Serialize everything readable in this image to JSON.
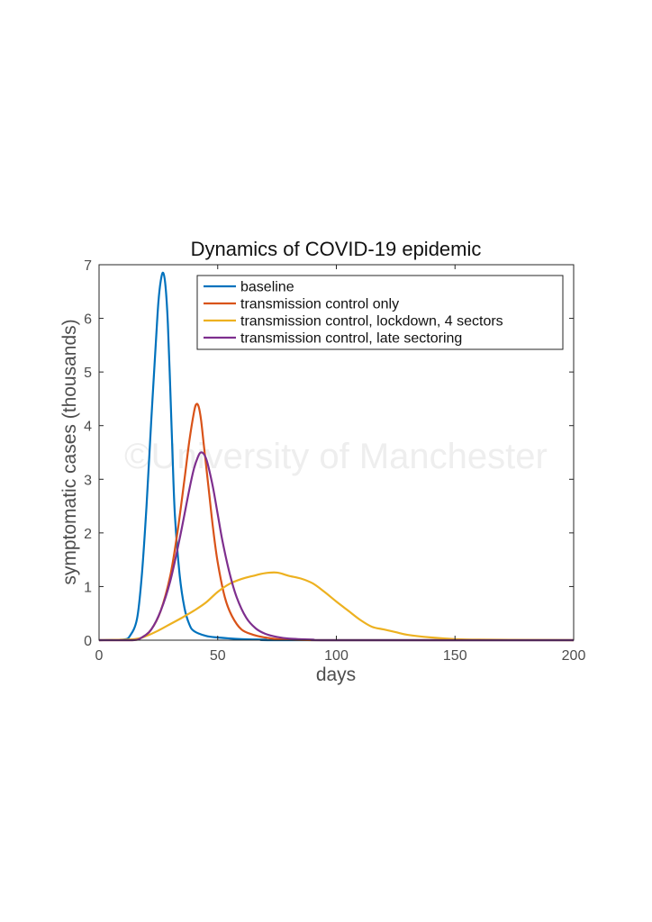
{
  "watermark": "©University of Manchester",
  "chart_data": {
    "type": "line",
    "title": "Dynamics of COVID-19 epidemic",
    "xlabel": "days",
    "ylabel": "symptomatic cases (thousands)",
    "xlim": [
      0,
      200
    ],
    "ylim": [
      0,
      7
    ],
    "xticks": [
      0,
      50,
      100,
      150,
      200
    ],
    "yticks": [
      0,
      1,
      2,
      3,
      4,
      5,
      6,
      7
    ],
    "grid": false,
    "legend_position": "top-right",
    "series": [
      {
        "name": "baseline",
        "color": "#0072bd",
        "x": [
          0,
          10,
          13,
          16,
          18,
          20,
          22,
          24,
          25,
          26,
          27,
          28,
          29,
          30,
          31,
          32,
          34,
          36,
          38,
          40,
          45,
          50,
          60,
          70,
          80,
          200
        ],
        "y": [
          0,
          0.01,
          0.08,
          0.4,
          1.2,
          2.5,
          4.1,
          5.6,
          6.3,
          6.7,
          6.85,
          6.6,
          5.9,
          4.7,
          3.4,
          2.3,
          1.2,
          0.6,
          0.3,
          0.17,
          0.08,
          0.05,
          0.02,
          0.01,
          0,
          0
        ]
      },
      {
        "name": "transmission control only",
        "color": "#d95319",
        "x": [
          0,
          14,
          18,
          22,
          26,
          30,
          33,
          36,
          38,
          40,
          41,
          42,
          43,
          44,
          46,
          48,
          50,
          53,
          56,
          60,
          65,
          70,
          75,
          80,
          90,
          100,
          200
        ],
        "y": [
          0,
          0,
          0.05,
          0.2,
          0.55,
          1.2,
          2.0,
          3.0,
          3.7,
          4.25,
          4.4,
          4.35,
          4.1,
          3.7,
          2.9,
          2.1,
          1.45,
          0.8,
          0.45,
          0.2,
          0.1,
          0.05,
          0.02,
          0.01,
          0,
          0,
          0
        ]
      },
      {
        "name": "transmission control, lockdown, 4 sectors",
        "color": "#edb120",
        "x": [
          0,
          15,
          20,
          25,
          30,
          35,
          40,
          45,
          50,
          55,
          60,
          65,
          70,
          75,
          80,
          85,
          90,
          95,
          100,
          105,
          110,
          115,
          120,
          125,
          130,
          140,
          150,
          160,
          200
        ],
        "y": [
          0,
          0.02,
          0.08,
          0.18,
          0.3,
          0.42,
          0.55,
          0.7,
          0.9,
          1.05,
          1.14,
          1.2,
          1.25,
          1.26,
          1.2,
          1.15,
          1.06,
          0.9,
          0.72,
          0.55,
          0.38,
          0.25,
          0.2,
          0.15,
          0.1,
          0.05,
          0.02,
          0.01,
          0
        ]
      },
      {
        "name": "transmission control, late sectoring",
        "color": "#7e2f8e",
        "x": [
          0,
          14,
          18,
          22,
          26,
          30,
          34,
          38,
          40,
          42,
          43,
          44,
          45,
          46,
          48,
          50,
          52,
          55,
          58,
          62,
          66,
          70,
          75,
          80,
          90,
          100,
          200
        ],
        "y": [
          0,
          0,
          0.05,
          0.2,
          0.55,
          1.1,
          1.9,
          2.8,
          3.2,
          3.45,
          3.5,
          3.48,
          3.4,
          3.25,
          2.85,
          2.35,
          1.85,
          1.25,
          0.8,
          0.42,
          0.22,
          0.12,
          0.06,
          0.03,
          0.01,
          0,
          0
        ]
      }
    ]
  }
}
